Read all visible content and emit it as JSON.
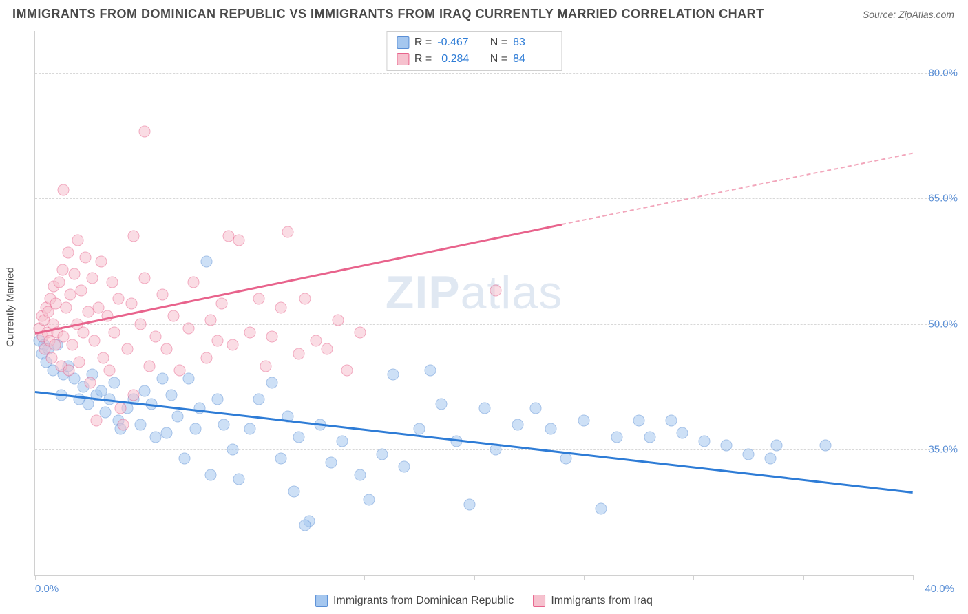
{
  "title": "IMMIGRANTS FROM DOMINICAN REPUBLIC VS IMMIGRANTS FROM IRAQ CURRENTLY MARRIED CORRELATION CHART",
  "source": "Source: ZipAtlas.com",
  "watermark_bold": "ZIP",
  "watermark_light": "atlas",
  "y_axis_title": "Currently Married",
  "chart": {
    "type": "scatter",
    "xlim": [
      0,
      40
    ],
    "ylim": [
      20,
      85
    ],
    "x_ticks": [
      0,
      5,
      10,
      15,
      20,
      25,
      30,
      35,
      40
    ],
    "y_ticks": [
      35,
      50,
      65,
      80
    ],
    "y_tick_labels": [
      "35.0%",
      "50.0%",
      "65.0%",
      "80.0%"
    ],
    "x_min_label": "0.0%",
    "x_max_label": "40.0%",
    "background_color": "#ffffff",
    "grid_color": "#d8d8d8",
    "axis_color": "#d0d0d0",
    "label_color": "#5a8fd6",
    "marker_size": 17,
    "marker_opacity": 0.55
  },
  "series": [
    {
      "name": "Immigrants from Dominican Republic",
      "fill_color": "#a5c7ef",
      "stroke_color": "#5a8fd6",
      "trend_color": "#2e7cd6",
      "R": "-0.467",
      "N": "83",
      "trend": {
        "x1": 0,
        "y1": 42,
        "x2": 40,
        "y2": 30,
        "dashed_from": 40
      },
      "points": [
        [
          0.2,
          48
        ],
        [
          0.3,
          46.5
        ],
        [
          0.4,
          47.5
        ],
        [
          0.5,
          45.5
        ],
        [
          0.6,
          47
        ],
        [
          0.8,
          44.5
        ],
        [
          1.0,
          47.5
        ],
        [
          1.2,
          41.5
        ],
        [
          1.3,
          44
        ],
        [
          1.5,
          45
        ],
        [
          1.8,
          43.5
        ],
        [
          2.0,
          41
        ],
        [
          2.2,
          42.5
        ],
        [
          2.4,
          40.5
        ],
        [
          2.6,
          44
        ],
        [
          2.8,
          41.5
        ],
        [
          3.0,
          42
        ],
        [
          3.2,
          39.5
        ],
        [
          3.4,
          41
        ],
        [
          3.6,
          43
        ],
        [
          3.8,
          38.5
        ],
        [
          3.9,
          37.5
        ],
        [
          4.2,
          40
        ],
        [
          4.5,
          41
        ],
        [
          4.8,
          38
        ],
        [
          5.0,
          42
        ],
        [
          5.3,
          40.5
        ],
        [
          5.5,
          36.5
        ],
        [
          5.8,
          43.5
        ],
        [
          6.0,
          37
        ],
        [
          6.2,
          41.5
        ],
        [
          6.5,
          39
        ],
        [
          6.8,
          34
        ],
        [
          7.0,
          43.5
        ],
        [
          7.3,
          37.5
        ],
        [
          7.5,
          40
        ],
        [
          7.8,
          57.5
        ],
        [
          8.0,
          32
        ],
        [
          8.3,
          41
        ],
        [
          8.6,
          38
        ],
        [
          9.0,
          35
        ],
        [
          9.3,
          31.5
        ],
        [
          9.8,
          37.5
        ],
        [
          10.2,
          41
        ],
        [
          10.8,
          43
        ],
        [
          11.2,
          34
        ],
        [
          11.5,
          39
        ],
        [
          12.0,
          36.5
        ],
        [
          12.5,
          26.5
        ],
        [
          13.0,
          38
        ],
        [
          13.5,
          33.5
        ],
        [
          11.8,
          30
        ],
        [
          14.0,
          36
        ],
        [
          12.3,
          26
        ],
        [
          14.8,
          32
        ],
        [
          15.2,
          29
        ],
        [
          15.8,
          34.5
        ],
        [
          16.3,
          44
        ],
        [
          16.8,
          33
        ],
        [
          17.5,
          37.5
        ],
        [
          18.0,
          44.5
        ],
        [
          18.5,
          40.5
        ],
        [
          19.2,
          36
        ],
        [
          19.8,
          28.5
        ],
        [
          20.5,
          40
        ],
        [
          21.0,
          35
        ],
        [
          22.0,
          38
        ],
        [
          22.8,
          40
        ],
        [
          23.5,
          37.5
        ],
        [
          24.2,
          34
        ],
        [
          25.0,
          38.5
        ],
        [
          25.8,
          28
        ],
        [
          26.5,
          36.5
        ],
        [
          27.5,
          38.5
        ],
        [
          28.0,
          36.5
        ],
        [
          29.0,
          38.5
        ],
        [
          29.5,
          37
        ],
        [
          30.5,
          36
        ],
        [
          31.5,
          35.5
        ],
        [
          32.5,
          34.5
        ],
        [
          33.5,
          34
        ],
        [
          33.8,
          35.5
        ],
        [
          36.0,
          35.5
        ]
      ]
    },
    {
      "name": "Immigrants from Iraq",
      "fill_color": "#f6c1ce",
      "stroke_color": "#e8638c",
      "R": "0.284",
      "N": "84",
      "trend_color": "#e8638c",
      "trend": {
        "x1": 0,
        "y1": 49,
        "x2": 24,
        "y2": 62,
        "dashed_from": 24,
        "x3": 40,
        "y3": 70.5
      },
      "points": [
        [
          0.2,
          49.5
        ],
        [
          0.3,
          51
        ],
        [
          0.35,
          48.5
        ],
        [
          0.4,
          50.5
        ],
        [
          0.45,
          47
        ],
        [
          0.5,
          52
        ],
        [
          0.55,
          49
        ],
        [
          0.6,
          51.5
        ],
        [
          0.65,
          48
        ],
        [
          0.7,
          53
        ],
        [
          0.75,
          46
        ],
        [
          0.8,
          50
        ],
        [
          0.85,
          54.5
        ],
        [
          0.9,
          47.5
        ],
        [
          0.95,
          52.5
        ],
        [
          1.0,
          49
        ],
        [
          1.1,
          55
        ],
        [
          1.2,
          45
        ],
        [
          1.25,
          56.5
        ],
        [
          1.3,
          48.5
        ],
        [
          1.4,
          52
        ],
        [
          1.5,
          58.5
        ],
        [
          1.55,
          44.5
        ],
        [
          1.6,
          53.5
        ],
        [
          1.7,
          47.5
        ],
        [
          1.8,
          56
        ],
        [
          1.9,
          50
        ],
        [
          1.95,
          60
        ],
        [
          2.0,
          45.5
        ],
        [
          2.1,
          54
        ],
        [
          2.2,
          49
        ],
        [
          2.3,
          58
        ],
        [
          2.4,
          51.5
        ],
        [
          2.5,
          43
        ],
        [
          2.6,
          55.5
        ],
        [
          2.7,
          48
        ],
        [
          2.8,
          38.5
        ],
        [
          2.9,
          52
        ],
        [
          3.0,
          57.5
        ],
        [
          3.1,
          46
        ],
        [
          1.3,
          66
        ],
        [
          3.3,
          51
        ],
        [
          3.4,
          44.5
        ],
        [
          3.5,
          55
        ],
        [
          3.6,
          49
        ],
        [
          3.8,
          53
        ],
        [
          3.9,
          40
        ],
        [
          4.0,
          38
        ],
        [
          4.2,
          47
        ],
        [
          4.4,
          52.5
        ],
        [
          4.5,
          41.5
        ],
        [
          4.8,
          50
        ],
        [
          5.0,
          55.5
        ],
        [
          5.2,
          45
        ],
        [
          5.5,
          48.5
        ],
        [
          5.0,
          73
        ],
        [
          5.8,
          53.5
        ],
        [
          6.0,
          47
        ],
        [
          6.3,
          51
        ],
        [
          6.6,
          44.5
        ],
        [
          7.0,
          49.5
        ],
        [
          7.2,
          55
        ],
        [
          4.5,
          60.5
        ],
        [
          7.8,
          46
        ],
        [
          8.0,
          50.5
        ],
        [
          8.3,
          48
        ],
        [
          8.8,
          60.5
        ],
        [
          8.5,
          52.5
        ],
        [
          9.0,
          47.5
        ],
        [
          9.3,
          60
        ],
        [
          9.8,
          49
        ],
        [
          10.2,
          53
        ],
        [
          10.8,
          48.5
        ],
        [
          11.2,
          52
        ],
        [
          11.5,
          61
        ],
        [
          12.0,
          46.5
        ],
        [
          12.3,
          53
        ],
        [
          12.8,
          48
        ],
        [
          10.5,
          45
        ],
        [
          13.3,
          47
        ],
        [
          13.8,
          50.5
        ],
        [
          14.2,
          44.5
        ],
        [
          14.8,
          49
        ],
        [
          21.0,
          54
        ]
      ]
    }
  ],
  "stats_labels": {
    "R": "R =",
    "N": "N ="
  },
  "legend": {
    "s1": "Immigrants from Dominican Republic",
    "s2": "Immigrants from Iraq"
  }
}
